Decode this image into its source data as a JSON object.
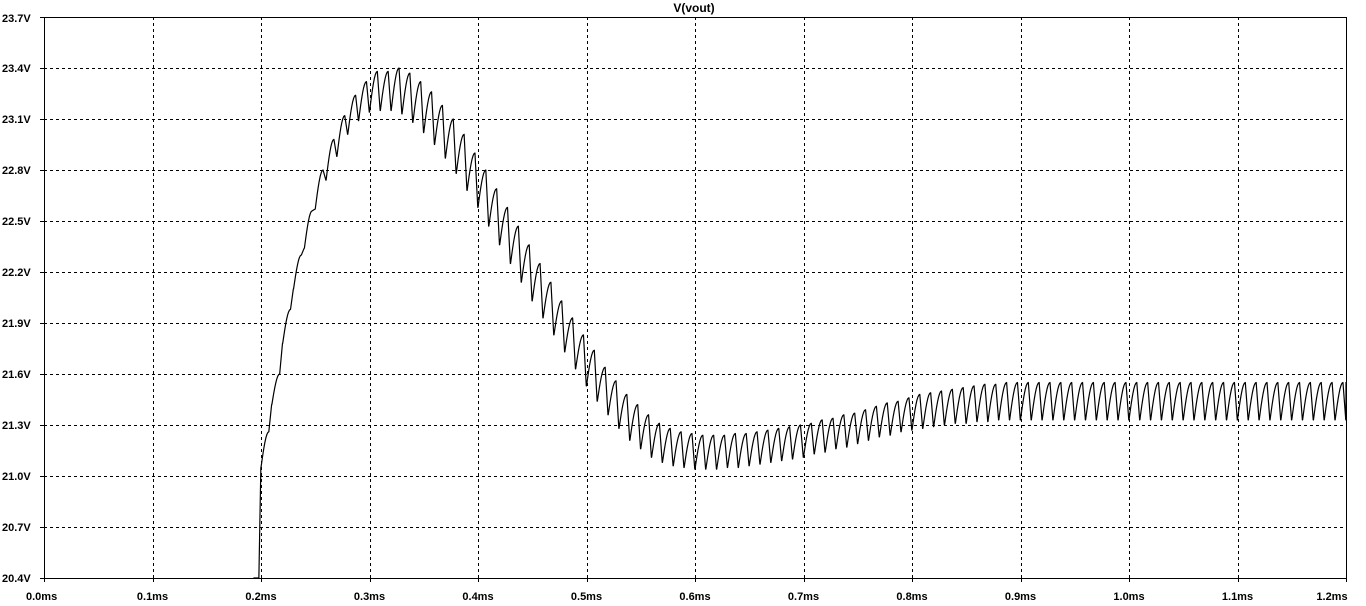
{
  "chart_data": {
    "type": "line",
    "title": "V(vout)",
    "xlabel": "",
    "ylabel": "",
    "xlim": [
      0.0,
      1.2
    ],
    "ylim": [
      20.4,
      23.7
    ],
    "grid": true,
    "x_ticks": [
      "0.0ms",
      "0.1ms",
      "0.2ms",
      "0.3ms",
      "0.4ms",
      "0.5ms",
      "0.6ms",
      "0.7ms",
      "0.8ms",
      "0.9ms",
      "1.0ms",
      "1.1ms",
      "1.2ms"
    ],
    "y_ticks": [
      "20.4V",
      "20.7V",
      "21.0V",
      "21.3V",
      "21.6V",
      "21.9V",
      "22.2V",
      "22.5V",
      "22.8V",
      "23.1V",
      "23.4V",
      "23.7V"
    ],
    "series": [
      {
        "color": "#000000",
        "x": [
          0.193,
          0.2,
          0.21,
          0.22,
          0.23,
          0.24,
          0.25,
          0.26,
          0.27,
          0.28,
          0.29,
          0.3,
          0.31,
          0.32,
          0.33,
          0.34,
          0.35,
          0.36,
          0.37,
          0.38,
          0.39,
          0.4,
          0.41,
          0.42,
          0.43,
          0.44,
          0.45,
          0.46,
          0.47,
          0.48,
          0.49,
          0.5,
          0.51,
          0.52,
          0.53,
          0.54,
          0.55,
          0.56,
          0.57,
          0.58,
          0.59,
          0.6,
          0.61,
          0.62,
          0.63,
          0.64,
          0.65,
          0.66,
          0.67,
          0.68,
          0.69,
          0.7,
          0.71,
          0.72,
          0.73,
          0.74,
          0.75,
          0.76,
          0.77,
          0.78,
          0.79,
          0.8,
          0.81,
          0.82,
          0.83,
          0.84,
          0.85,
          0.86,
          0.87,
          0.88,
          0.89,
          0.9,
          0.91,
          0.92,
          0.93,
          0.94,
          0.95,
          0.96,
          0.97,
          0.98,
          0.99,
          1.0,
          1.01,
          1.02,
          1.03,
          1.04,
          1.05,
          1.06,
          1.07,
          1.08,
          1.09,
          1.1,
          1.11,
          1.12,
          1.13,
          1.14,
          1.15,
          1.16,
          1.17,
          1.18,
          1.19,
          1.2
        ],
        "y_peak": [
          20.4,
          21.26,
          21.6,
          21.98,
          22.3,
          22.56,
          22.8,
          22.98,
          23.12,
          23.24,
          23.32,
          23.38,
          23.38,
          23.4,
          23.37,
          23.32,
          23.26,
          23.18,
          23.1,
          23.01,
          22.9,
          22.8,
          22.69,
          22.58,
          22.47,
          22.36,
          22.25,
          22.14,
          22.03,
          21.93,
          21.83,
          21.74,
          21.64,
          21.56,
          21.48,
          21.42,
          21.36,
          21.31,
          21.28,
          21.26,
          21.25,
          21.24,
          21.24,
          21.24,
          21.25,
          21.25,
          21.26,
          21.27,
          21.28,
          21.29,
          21.3,
          21.31,
          21.33,
          21.34,
          21.36,
          21.37,
          21.39,
          21.41,
          21.43,
          21.44,
          21.46,
          21.48,
          21.49,
          21.5,
          21.51,
          21.52,
          21.53,
          21.54,
          21.54,
          21.55,
          21.55,
          21.55,
          21.55,
          21.55,
          21.55,
          21.55,
          21.55,
          21.55,
          21.55,
          21.55,
          21.55,
          21.55,
          21.55,
          21.55,
          21.55,
          21.55,
          21.55,
          21.55,
          21.55,
          21.55,
          21.55,
          21.55,
          21.55,
          21.55,
          21.55,
          21.55,
          21.55,
          21.55,
          21.55,
          21.55,
          21.55,
          21.55
        ],
        "y_trough": [
          20.4,
          21.05,
          21.42,
          21.78,
          22.1,
          22.34,
          22.57,
          22.74,
          22.88,
          23.01,
          23.09,
          23.14,
          23.15,
          23.15,
          23.13,
          23.08,
          23.02,
          22.95,
          22.87,
          22.78,
          22.68,
          22.58,
          22.47,
          22.36,
          22.25,
          22.14,
          22.03,
          21.93,
          21.83,
          21.73,
          21.63,
          21.53,
          21.44,
          21.36,
          21.28,
          21.21,
          21.16,
          21.11,
          21.08,
          21.06,
          21.05,
          21.04,
          21.04,
          21.04,
          21.05,
          21.05,
          21.06,
          21.07,
          21.08,
          21.09,
          21.1,
          21.11,
          21.13,
          21.14,
          21.16,
          21.17,
          21.19,
          21.21,
          21.23,
          21.24,
          21.26,
          21.27,
          21.28,
          21.29,
          21.3,
          21.31,
          21.31,
          21.32,
          21.32,
          21.33,
          21.33,
          21.33,
          21.33,
          21.33,
          21.33,
          21.33,
          21.33,
          21.33,
          21.33,
          21.33,
          21.33,
          21.33,
          21.33,
          21.33,
          21.33,
          21.33,
          21.33,
          21.33,
          21.33,
          21.33,
          21.33,
          21.33,
          21.33,
          21.33,
          21.33,
          21.33,
          21.33,
          21.33,
          21.33,
          21.33,
          21.33,
          21.33
        ]
      }
    ]
  }
}
